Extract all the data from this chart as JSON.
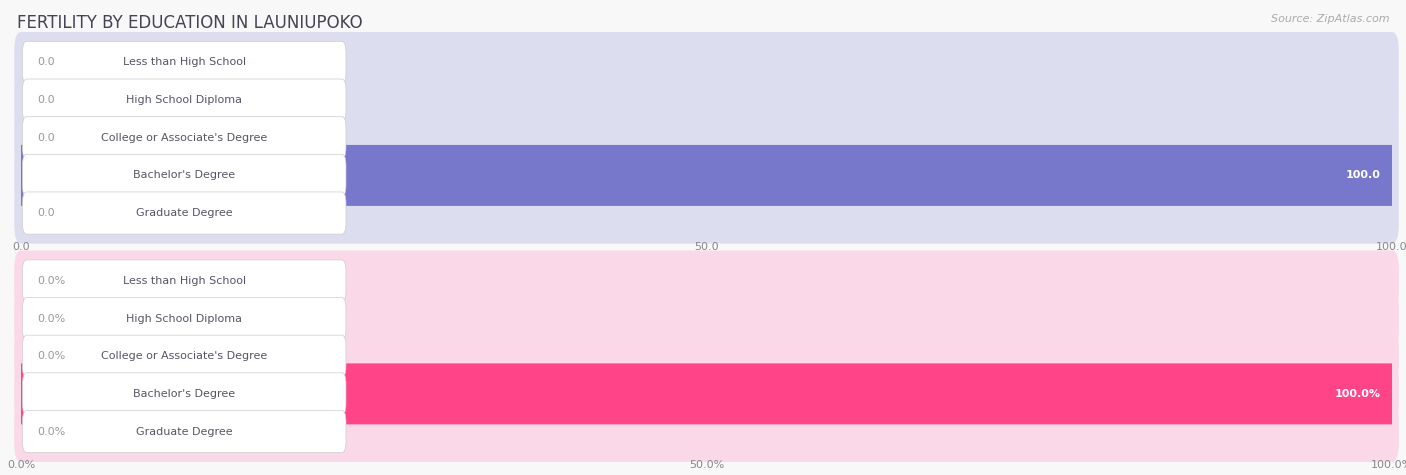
{
  "title": "FERTILITY BY EDUCATION IN LAUNIUPOKO",
  "source": "Source: ZipAtlas.com",
  "categories": [
    "Less than High School",
    "High School Diploma",
    "College or Associate's Degree",
    "Bachelor's Degree",
    "Graduate Degree"
  ],
  "top_values": [
    0.0,
    0.0,
    0.0,
    100.0,
    0.0
  ],
  "bottom_values": [
    0.0,
    0.0,
    0.0,
    100.0,
    0.0
  ],
  "top_color_normal": "#aaaaee",
  "top_color_highlight": "#7777cc",
  "top_bg_color": "#ddddf0",
  "bottom_color_normal": "#ffaabb",
  "bottom_color_highlight": "#ff4488",
  "bottom_bg_color": "#fad8e8",
  "top_xtick_labels": [
    "0.0",
    "50.0",
    "100.0"
  ],
  "bottom_xtick_labels": [
    "0.0%",
    "50.0%",
    "100.0%"
  ],
  "fig_bg_color": "#f8f8f8",
  "title_color": "#444455",
  "source_color": "#aaaaaa",
  "label_text_color": "#555566",
  "value_color_outside": "#999999",
  "value_color_inside": "#ffffff",
  "grid_color": "#cccccc",
  "label_box_color": "#ffffff",
  "label_box_edge_color": "#cccccc",
  "bar_height": 0.62,
  "title_fontsize": 12,
  "label_fontsize": 8,
  "value_fontsize": 8,
  "tick_fontsize": 8,
  "source_fontsize": 8
}
